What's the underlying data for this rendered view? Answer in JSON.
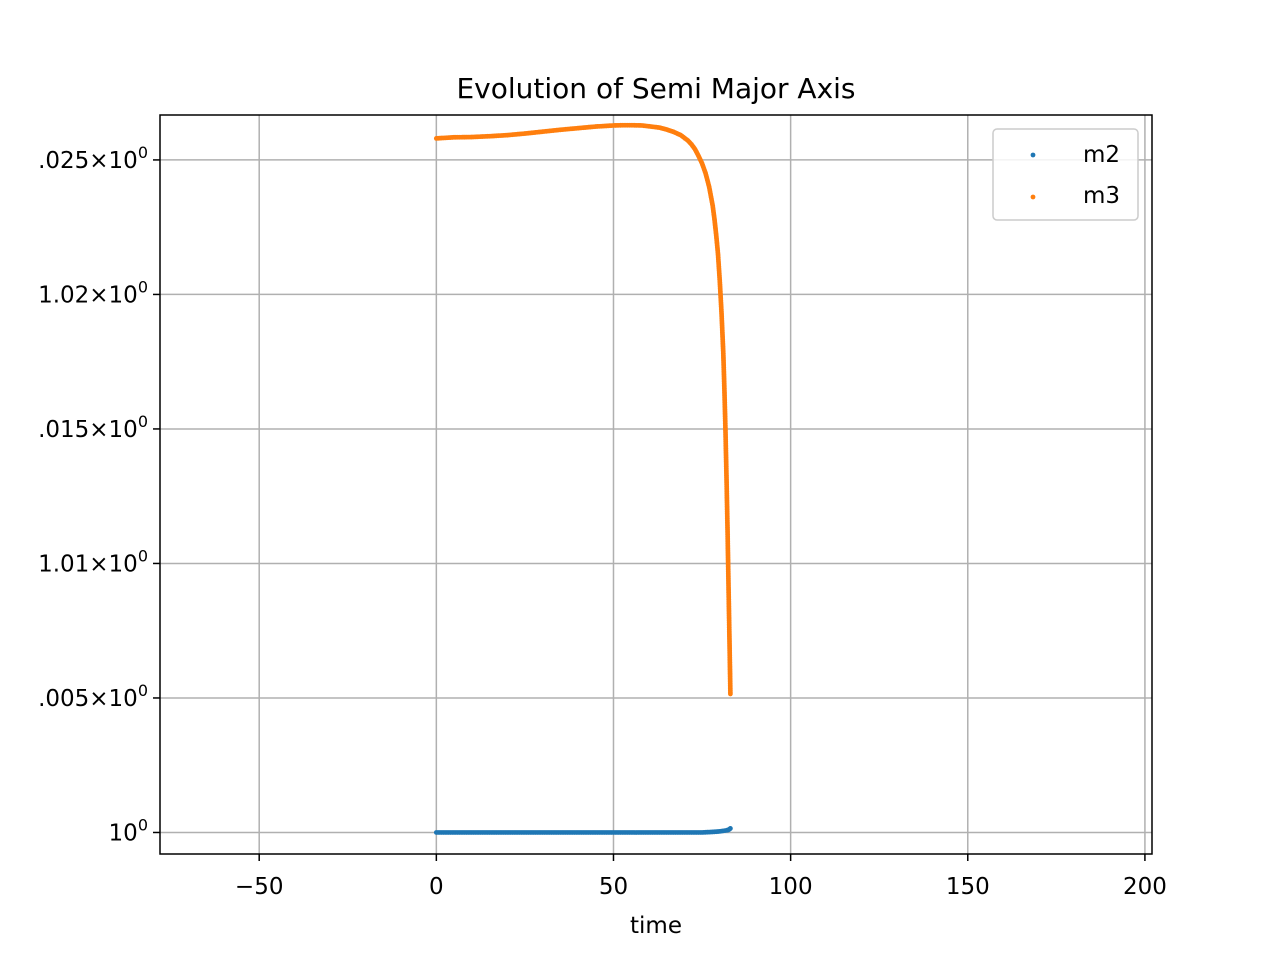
{
  "chart_data": {
    "type": "scatter",
    "title": "Evolution of Semi Major Axis",
    "xlabel": "time",
    "ylabel": "",
    "xlim": [
      -78,
      202
    ],
    "ylim": [
      0.9992,
      1.02667
    ],
    "x_ticks": [
      -50,
      0,
      50,
      100,
      150,
      200
    ],
    "x_tick_labels": [
      "−50",
      "0",
      "50",
      "100",
      "150",
      "200"
    ],
    "y_ticks": [
      1.0,
      1.005,
      1.01,
      1.015,
      1.02,
      1.025
    ],
    "y_tick_labels": [
      {
        "mantissa": "",
        "base": "10",
        "exp": "0"
      },
      {
        "mantissa": ".005×",
        "base": "10",
        "exp": "0"
      },
      {
        "mantissa": "1.01×",
        "base": "10",
        "exp": "0"
      },
      {
        "mantissa": ".015×",
        "base": "10",
        "exp": "0"
      },
      {
        "mantissa": "1.02×",
        "base": "10",
        "exp": "0"
      },
      {
        "mantissa": ".025×",
        "base": "10",
        "exp": "0"
      }
    ],
    "grid": true,
    "legend_position": "top-right",
    "series": [
      {
        "name": "m2",
        "color": "#1f77b4",
        "x": [
          0,
          10,
          20,
          30,
          40,
          50,
          60,
          70,
          75,
          78,
          79,
          80,
          81,
          82,
          82.5,
          83
        ],
        "y": [
          1.0,
          1.0,
          1.0,
          1.0,
          1.0,
          1.0,
          1.0,
          1.0,
          1.0,
          1.00002,
          1.00003,
          1.00004,
          1.00006,
          1.00008,
          1.0001,
          1.00015
        ]
      },
      {
        "name": "m3",
        "color": "#ff7f0e",
        "x": [
          0,
          5,
          10,
          15,
          20,
          25,
          30,
          35,
          40,
          45,
          50,
          53,
          55,
          58,
          60,
          63,
          65,
          67,
          69,
          71,
          72,
          73,
          74,
          75,
          76,
          77,
          78,
          78.5,
          79,
          79.5,
          80,
          80.5,
          81,
          81.3,
          81.6,
          81.9,
          82.2,
          82.4,
          82.6,
          82.8,
          83
        ],
        "y": [
          1.0258,
          1.02584,
          1.02585,
          1.02588,
          1.02592,
          1.02598,
          1.02605,
          1.02612,
          1.02618,
          1.02624,
          1.02628,
          1.02629,
          1.02629,
          1.02628,
          1.02625,
          1.0262,
          1.02613,
          1.02604,
          1.02592,
          1.02572,
          1.02558,
          1.0254,
          1.02515,
          1.02487,
          1.0245,
          1.024,
          1.0233,
          1.0228,
          1.0222,
          1.0215,
          1.0205,
          1.0193,
          1.0178,
          1.0165,
          1.015,
          1.0132,
          1.0112,
          1.0097,
          1.0082,
          1.0067,
          1.00515
        ]
      }
    ]
  }
}
